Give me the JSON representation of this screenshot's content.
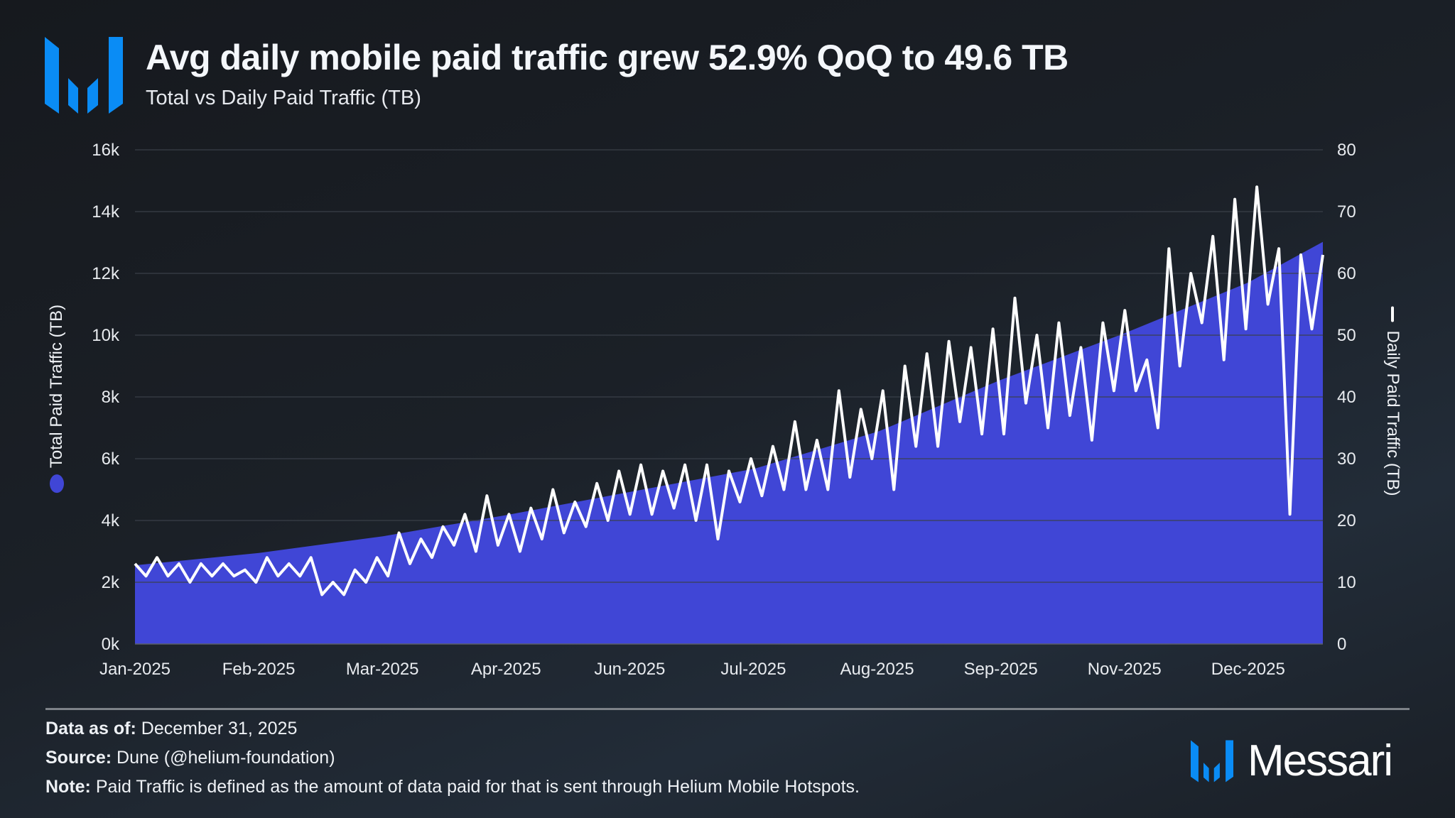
{
  "header": {
    "title": "Avg daily mobile paid traffic grew 52.9% QoQ to 49.6 TB",
    "subtitle": "Total vs Daily Paid Traffic (TB)"
  },
  "footer": {
    "data_as_of_label": "Data as of:",
    "data_as_of_value": "December 31, 2025",
    "source_label": "Source:",
    "source_value": "Dune (@helium-foundation)",
    "note_label": "Note:",
    "note_value": "Paid Traffic is defined as the amount of data paid for that is sent through Helium Mobile Hotspots.",
    "brand": "Messari"
  },
  "colors": {
    "area": "#4046d6",
    "line": "#ffffff",
    "logo": "#0a8cf5",
    "grid": "#3b414a"
  },
  "chart_data": {
    "type": "area+line",
    "title": "Total vs Daily Paid Traffic (TB)",
    "xlabel": "",
    "x_ticks": [
      "Jan-2025",
      "Feb-2025",
      "Mar-2025",
      "Apr-2025",
      "Jun-2025",
      "Jul-2025",
      "Aug-2025",
      "Sep-2025",
      "Nov-2025",
      "Dec-2025"
    ],
    "x_range_days": [
      0,
      364
    ],
    "y_left": {
      "label": "Total Paid Traffic (TB)",
      "ticks": [
        "0k",
        "2k",
        "4k",
        "6k",
        "8k",
        "10k",
        "12k",
        "14k",
        "16k"
      ],
      "range": [
        0,
        16000
      ]
    },
    "y_right": {
      "label": "Daily Paid Traffic (TB)",
      "ticks": [
        "0",
        "10",
        "20",
        "30",
        "40",
        "50",
        "60",
        "70",
        "80"
      ],
      "range": [
        0,
        80
      ]
    },
    "grid": true,
    "series": [
      {
        "name": "Total Paid Traffic (TB)",
        "axis": "left",
        "type": "area",
        "days": [
          0,
          38,
          76,
          114,
          152,
          190,
          228,
          265,
          303,
          341,
          364
        ],
        "values": [
          2550,
          2950,
          3490,
          4180,
          4930,
          5680,
          6890,
          8540,
          10050,
          11700,
          13020
        ]
      },
      {
        "name": "Daily Paid Traffic (TB)",
        "axis": "right",
        "type": "line",
        "values": [
          13,
          11,
          14,
          11,
          13,
          10,
          13,
          11,
          13,
          11,
          12,
          10,
          14,
          11,
          13,
          11,
          14,
          8,
          10,
          8,
          12,
          10,
          14,
          11,
          18,
          13,
          17,
          14,
          19,
          16,
          21,
          15,
          24,
          16,
          21,
          15,
          22,
          17,
          25,
          18,
          23,
          19,
          26,
          20,
          28,
          21,
          29,
          21,
          28,
          22,
          29,
          20,
          29,
          17,
          28,
          23,
          30,
          24,
          32,
          25,
          36,
          25,
          33,
          25,
          41,
          27,
          38,
          30,
          41,
          25,
          45,
          32,
          47,
          32,
          49,
          36,
          48,
          34,
          51,
          34,
          56,
          39,
          50,
          35,
          52,
          37,
          48,
          33,
          52,
          41,
          54,
          41,
          46,
          35,
          64,
          45,
          60,
          52,
          66,
          46,
          72,
          51,
          74,
          55,
          64,
          21,
          63,
          51,
          63
        ]
      }
    ]
  }
}
